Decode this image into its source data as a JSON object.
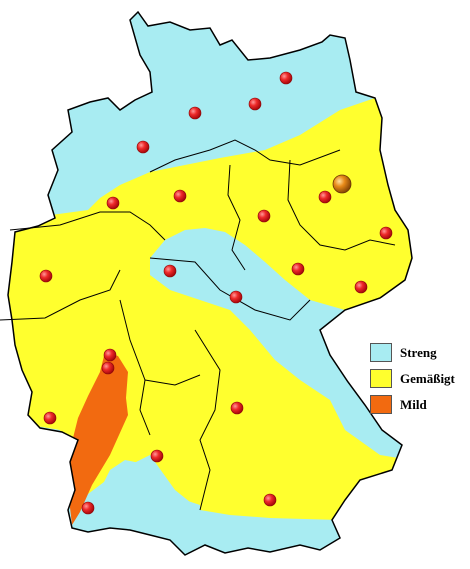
{
  "colors": {
    "strict": "#a8ecf2",
    "moderate": "#ffff2e",
    "mild": "#f26a10",
    "border": "#000000",
    "city": "#e8282c",
    "capital": "#d98a12"
  },
  "legend": {
    "items": [
      {
        "key": "strict",
        "label": "Streng",
        "color": "#a8ecf2"
      },
      {
        "key": "moderate",
        "label": "Gemäßigt",
        "color": "#ffff2e"
      },
      {
        "key": "mild",
        "label": "Mild",
        "color": "#f26a10"
      }
    ]
  },
  "map": {
    "capital_marker": {
      "icon": "capital-city-marker-icon"
    },
    "city_marker": {
      "icon": "city-marker-icon"
    },
    "city_count": 23
  }
}
